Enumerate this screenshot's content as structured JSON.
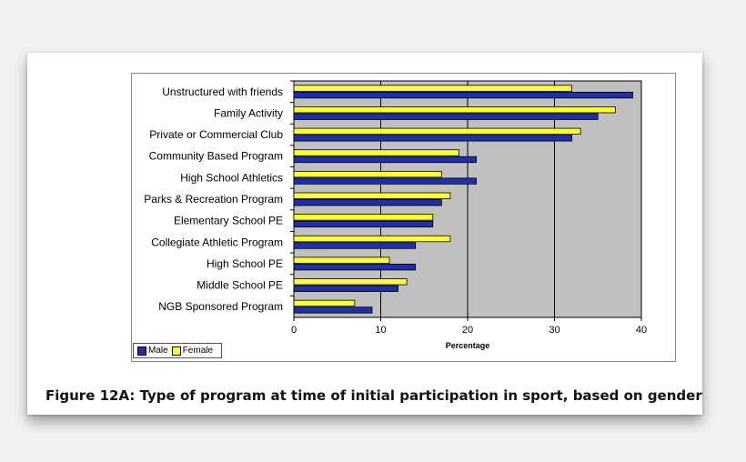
{
  "caption": "Figure 12A: Type of program at time of initial participation in sport, based on gender",
  "chart_data": {
    "type": "bar",
    "orientation": "horizontal",
    "title": "",
    "xlabel": "Percentage",
    "ylabel": "",
    "xlim": [
      0,
      40
    ],
    "x_ticks": [
      0,
      10,
      20,
      30,
      40
    ],
    "grid": true,
    "legend_position": "bottom-left",
    "plot_background": "#c0c0c0",
    "categories": [
      "Unstructured with friends",
      "Family Activity",
      "Private or Commercial Club",
      "Community Based Program",
      "High School Athletics",
      "Parks & Recreation Program",
      "Elementary School PE",
      "Collegiate Athletic Program",
      "High School PE",
      "Middle School PE",
      "NGB Sponsored Program"
    ],
    "series": [
      {
        "name": "Male",
        "color": "#1f2fa8",
        "values": [
          39,
          35,
          32,
          21,
          21,
          17,
          16,
          14,
          14,
          12,
          9
        ]
      },
      {
        "name": "Female",
        "color": "#ffff33",
        "values": [
          32,
          37,
          33,
          19,
          17,
          18,
          16,
          18,
          11,
          13,
          7
        ]
      }
    ]
  }
}
